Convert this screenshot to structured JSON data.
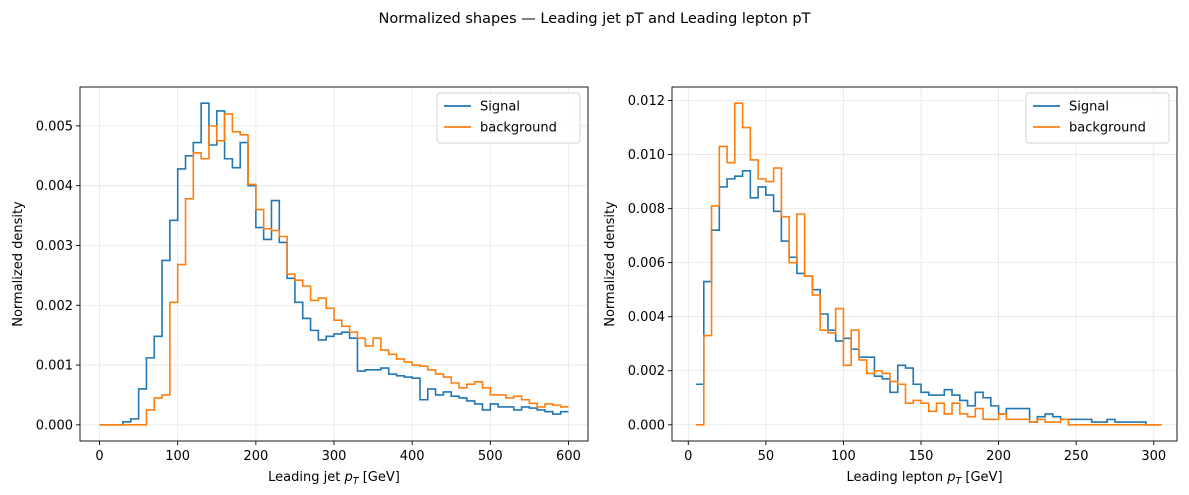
{
  "suptitle": "Normalized shapes — Leading jet pT and Leading lepton pT",
  "chart_data": [
    {
      "type": "histogram",
      "xlabel_main": "Leading jet ",
      "xlabel_var": "p",
      "xlabel_sub": "T",
      "xlabel_unit": " [GeV]",
      "ylabel": "Normalized density",
      "xlim": [
        -25,
        625
      ],
      "ylim": [
        -0.00027,
        0.00565
      ],
      "xticks": [
        0,
        100,
        200,
        300,
        400,
        500,
        600
      ],
      "yticks": [
        0.0,
        0.001,
        0.002,
        0.003,
        0.004,
        0.005
      ],
      "ytick_labels": [
        "0.000",
        "0.001",
        "0.002",
        "0.003",
        "0.004",
        "0.005"
      ],
      "grid": true,
      "legend_position": "top-right",
      "bin_edges_start": 0,
      "bin_width": 10,
      "series": [
        {
          "name": "Signal",
          "color": "#1f77b4",
          "values": [
            0,
            0,
            0,
            5e-05,
            0.0001,
            0.0006,
            0.00112,
            0.00148,
            0.00275,
            0.00342,
            0.00428,
            0.0045,
            0.00472,
            0.00538,
            0.00468,
            0.00525,
            0.00445,
            0.0043,
            0.00472,
            0.004,
            0.0033,
            0.0031,
            0.00375,
            0.00305,
            0.00245,
            0.00205,
            0.00178,
            0.00158,
            0.00142,
            0.00148,
            0.00152,
            0.00155,
            0.00145,
            0.0009,
            0.00092,
            0.00092,
            0.00095,
            0.00085,
            0.00082,
            0.0008,
            0.00078,
            0.00042,
            0.0006,
            0.0005,
            0.00055,
            0.00048,
            0.00045,
            0.0004,
            0.00035,
            0.00025,
            0.00035,
            0.0003,
            0.0003,
            0.00025,
            0.0003,
            0.00028,
            0.00025,
            0.00022,
            0.00018,
            0.00022
          ]
        },
        {
          "name": "background",
          "color": "#ff7f0e",
          "values": [
            0,
            0,
            0,
            0,
            0,
            0,
            0.00025,
            0.00045,
            0.0005,
            0.00205,
            0.00268,
            0.00378,
            0.00455,
            0.00445,
            0.005,
            0.00475,
            0.0052,
            0.0049,
            0.00485,
            0.00402,
            0.0036,
            0.00328,
            0.00325,
            0.00315,
            0.00252,
            0.00242,
            0.00232,
            0.00208,
            0.00212,
            0.00195,
            0.00175,
            0.00165,
            0.00155,
            0.00145,
            0.00132,
            0.00145,
            0.00125,
            0.00118,
            0.0011,
            0.00105,
            0.001,
            0.00098,
            0.00092,
            0.00085,
            0.0008,
            0.0007,
            0.00062,
            0.00068,
            0.00072,
            0.00062,
            0.0005,
            0.0005,
            0.00045,
            0.00048,
            0.00042,
            0.00036,
            0.0003,
            0.00035,
            0.00033,
            0.0003
          ]
        }
      ]
    },
    {
      "type": "histogram",
      "xlabel_main": "Leading lepton ",
      "xlabel_var": "p",
      "xlabel_sub": "T",
      "xlabel_unit": " [GeV]",
      "ylabel": "Normalized density",
      "xlim": [
        -10.5,
        315
      ],
      "ylim": [
        -0.0006,
        0.0125
      ],
      "xticks": [
        0,
        50,
        100,
        150,
        200,
        250,
        300
      ],
      "yticks": [
        0.0,
        0.002,
        0.004,
        0.006,
        0.008,
        0.01,
        0.012
      ],
      "ytick_labels": [
        "0.000",
        "0.002",
        "0.004",
        "0.006",
        "0.008",
        "0.010",
        "0.012"
      ],
      "grid": true,
      "legend_position": "top-right",
      "bin_edges_start": 5,
      "bin_width": 5,
      "series": [
        {
          "name": "Signal",
          "color": "#1f77b4",
          "values": [
            0.0015,
            0.0053,
            0.0072,
            0.0088,
            0.0091,
            0.0092,
            0.0094,
            0.0084,
            0.0088,
            0.0085,
            0.0079,
            0.0068,
            0.0062,
            0.0056,
            0.0055,
            0.005,
            0.0041,
            0.0035,
            0.0031,
            0.0032,
            0.0028,
            0.0025,
            0.0025,
            0.0018,
            0.0017,
            0.0012,
            0.0022,
            0.0021,
            0.0015,
            0.0012,
            0.0011,
            0.0011,
            0.0013,
            0.0011,
            0.0009,
            0.0007,
            0.0012,
            0.001,
            0.0007,
            0.0004,
            0.0006,
            0.0006,
            0.0006,
            0.0001,
            0.0003,
            0.0004,
            0.0003,
            0.0002,
            0.0002,
            0.0002,
            0.0002,
            0.0001,
            0.0001,
            0.0002,
            0.0001,
            0.0001,
            0.0001,
            0.0001,
            0.0,
            0.0
          ]
        },
        {
          "name": "background",
          "color": "#ff7f0e",
          "values": [
            0.0,
            0.0033,
            0.0081,
            0.0103,
            0.0097,
            0.0119,
            0.011,
            0.0098,
            0.0091,
            0.009,
            0.0095,
            0.0077,
            0.006,
            0.0078,
            0.0055,
            0.0048,
            0.0035,
            0.0034,
            0.0043,
            0.0022,
            0.0035,
            0.0024,
            0.0019,
            0.002,
            0.0019,
            0.0016,
            0.0015,
            0.0008,
            0.0009,
            0.0008,
            0.0005,
            0.0008,
            0.0004,
            0.0008,
            0.0004,
            0.0003,
            0.0006,
            0.0002,
            0.0002,
            0.0004,
            0.0002,
            0.0002,
            0.0002,
            0.0001,
            0.0002,
            0.0001,
            0.0001,
            0.0002,
            0.0,
            0.0,
            0.0,
            0.0,
            0.0,
            0.0,
            0.0,
            0.0,
            0.0,
            0.0,
            0.0,
            0.0
          ]
        }
      ]
    }
  ]
}
